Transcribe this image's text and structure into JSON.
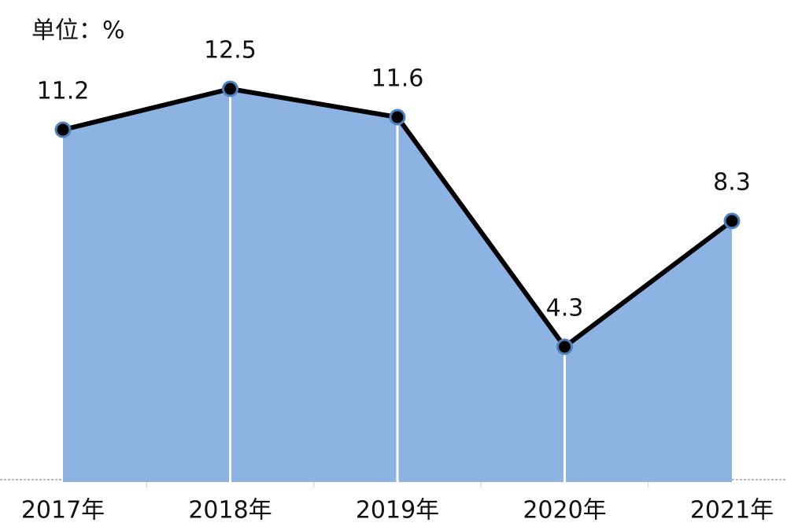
{
  "chart_data": {
    "type": "area-line",
    "unit_label": "单位：%",
    "categories": [
      "2017年",
      "2018年",
      "2019年",
      "2020年",
      "2021年"
    ],
    "series": [
      {
        "values": [
          11.2,
          12.5,
          11.6,
          4.3,
          8.3
        ],
        "color": "#000000",
        "fill_color": "#8db3e2",
        "marker_edge_color": "#4f81bd"
      }
    ],
    "ylim": [
      0,
      15
    ]
  }
}
